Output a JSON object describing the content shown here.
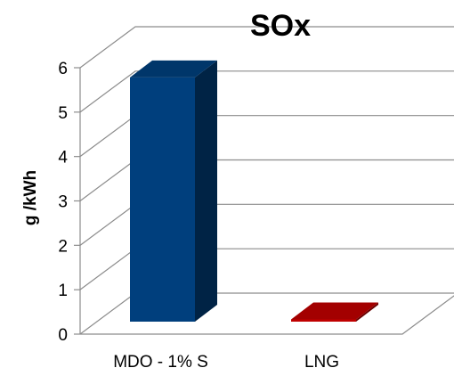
{
  "chart_data": {
    "type": "bar",
    "title": "SOx",
    "xlabel": "",
    "ylabel": "g /kWh",
    "categories": [
      "MDO - 1% S",
      "LNG"
    ],
    "values": [
      5.5,
      0.05
    ],
    "ylim": [
      0,
      6
    ],
    "yticks": [
      "0",
      "1",
      "2",
      "3",
      "4",
      "5",
      "6"
    ],
    "grid": true,
    "style": "3d",
    "colors": [
      "#003f7d",
      "#c00000"
    ]
  }
}
